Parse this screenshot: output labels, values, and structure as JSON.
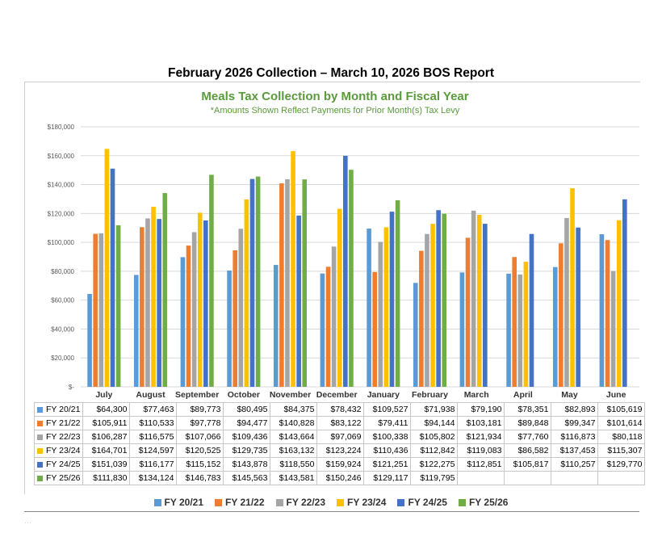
{
  "report_title": "February 2026 Collection – March 10, 2026 BOS Report",
  "cutoff_text": "...",
  "colors": {
    "FY 20/21": "#5b9bd5",
    "FY 21/22": "#ed7d31",
    "FY 22/23": "#a5a5a5",
    "FY 23/24": "#ffc000",
    "FY 24/25": "#4472c4",
    "FY 25/26": "#70ad47",
    "title": "#5a9a3c"
  },
  "chart_data": {
    "type": "bar",
    "title": "Meals Tax Collection by Month and Fiscal Year",
    "subtitle": "*Amounts Shown Reflect Payments for Prior Month(s) Tax Levy",
    "xlabel": "",
    "ylabel": "",
    "ylim": [
      0,
      180000
    ],
    "yticks": [
      0,
      20000,
      40000,
      60000,
      80000,
      100000,
      120000,
      140000,
      160000,
      180000
    ],
    "ytick_labels": [
      "$-",
      "$20,000",
      "$40,000",
      "$60,000",
      "$80,000",
      "$100,000",
      "$120,000",
      "$140,000",
      "$160,000",
      "$180,000"
    ],
    "grid": true,
    "legend_position": "bottom",
    "categories": [
      "July",
      "August",
      "September",
      "October",
      "November",
      "December",
      "January",
      "February",
      "March",
      "April",
      "May",
      "June"
    ],
    "series": [
      {
        "name": "FY 20/21",
        "values": [
          64300,
          77463,
          89773,
          80495,
          84375,
          78432,
          109527,
          71938,
          79190,
          78351,
          82893,
          105619
        ],
        "labels": [
          "$64,300",
          "$77,463",
          "$89,773",
          "$80,495",
          "$84,375",
          "$78,432",
          "$109,527",
          "$71,938",
          "$79,190",
          "$78,351",
          "$82,893",
          "$105,619"
        ]
      },
      {
        "name": "FY 21/22",
        "values": [
          105911,
          110533,
          97778,
          94477,
          140828,
          83122,
          79411,
          94144,
          103181,
          89848,
          99347,
          101614
        ],
        "labels": [
          "$105,911",
          "$110,533",
          "$97,778",
          "$94,477",
          "$140,828",
          "$83,122",
          "$79,411",
          "$94,144",
          "$103,181",
          "$89,848",
          "$99,347",
          "$101,614"
        ]
      },
      {
        "name": "FY 22/23",
        "values": [
          106287,
          116575,
          107066,
          109436,
          143664,
          97069,
          100338,
          105802,
          121934,
          77760,
          116873,
          80118
        ],
        "labels": [
          "$106,287",
          "$116,575",
          "$107,066",
          "$109,436",
          "$143,664",
          "$97,069",
          "$100,338",
          "$105,802",
          "$121,934",
          "$77,760",
          "$116,873",
          "$80,118"
        ]
      },
      {
        "name": "FY 23/24",
        "values": [
          164701,
          124597,
          120525,
          129735,
          163132,
          123224,
          110436,
          112842,
          119083,
          86582,
          137453,
          115307
        ],
        "labels": [
          "$164,701",
          "$124,597",
          "$120,525",
          "$129,735",
          "$163,132",
          "$123,224",
          "$110,436",
          "$112,842",
          "$119,083",
          "$86,582",
          "$137,453",
          "$115,307"
        ]
      },
      {
        "name": "FY 24/25",
        "values": [
          151039,
          116177,
          115152,
          143878,
          118550,
          159924,
          121251,
          122275,
          112851,
          105817,
          110257,
          129770
        ],
        "labels": [
          "$151,039",
          "$116,177",
          "$115,152",
          "$143,878",
          "$118,550",
          "$159,924",
          "$121,251",
          "$122,275",
          "$112,851",
          "$105,817",
          "$110,257",
          "$129,770"
        ]
      },
      {
        "name": "FY 25/26",
        "values": [
          111830,
          134124,
          146783,
          145563,
          143581,
          150246,
          129117,
          119795,
          null,
          null,
          null,
          null
        ],
        "labels": [
          "$111,830",
          "$134,124",
          "$146,783",
          "$145,563",
          "$143,581",
          "$150,246",
          "$129,117",
          "$119,795",
          "",
          "",
          "",
          ""
        ]
      }
    ]
  }
}
